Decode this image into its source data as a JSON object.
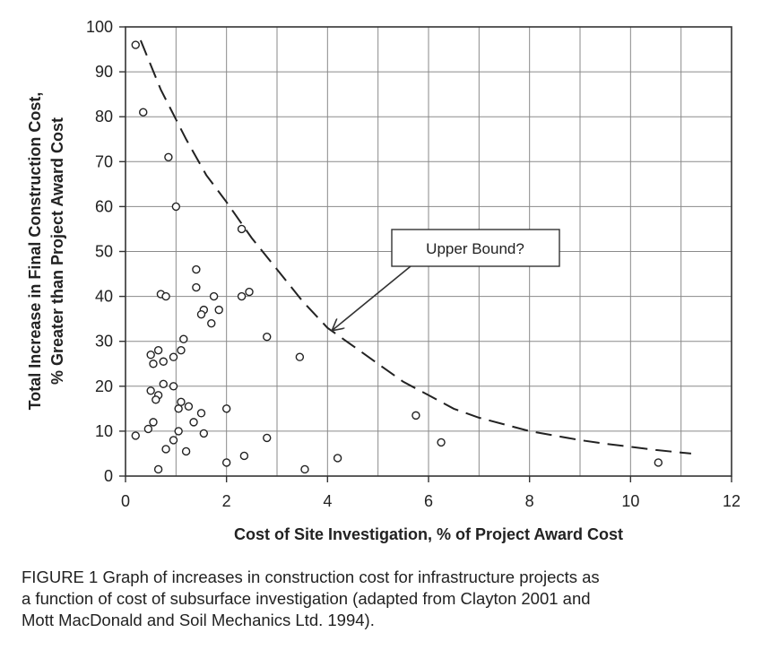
{
  "chart_data": {
    "type": "scatter",
    "xlabel": "Cost of Site Investigation, % of Project Award Cost",
    "ylabel_line1": "Total Increase in Final Construction Cost,",
    "ylabel_line2": "% Greater than Project Award Cost",
    "xlim": [
      0,
      12
    ],
    "ylim": [
      0,
      100
    ],
    "xticks": [
      0,
      2,
      4,
      6,
      8,
      10,
      12
    ],
    "yticks": [
      0,
      10,
      20,
      30,
      40,
      50,
      60,
      70,
      80,
      90,
      100
    ],
    "grid": true,
    "points": [
      {
        "x": 0.2,
        "y": 96
      },
      {
        "x": 0.35,
        "y": 81
      },
      {
        "x": 0.85,
        "y": 71
      },
      {
        "x": 1.0,
        "y": 60
      },
      {
        "x": 2.3,
        "y": 55
      },
      {
        "x": 1.4,
        "y": 46
      },
      {
        "x": 1.4,
        "y": 42
      },
      {
        "x": 0.7,
        "y": 40.5
      },
      {
        "x": 0.8,
        "y": 40
      },
      {
        "x": 1.75,
        "y": 40
      },
      {
        "x": 2.3,
        "y": 40
      },
      {
        "x": 2.45,
        "y": 41
      },
      {
        "x": 1.55,
        "y": 37
      },
      {
        "x": 1.85,
        "y": 37
      },
      {
        "x": 1.5,
        "y": 36
      },
      {
        "x": 1.7,
        "y": 34
      },
      {
        "x": 1.15,
        "y": 30.5
      },
      {
        "x": 1.1,
        "y": 28
      },
      {
        "x": 0.65,
        "y": 28
      },
      {
        "x": 0.5,
        "y": 27
      },
      {
        "x": 0.95,
        "y": 26.5
      },
      {
        "x": 0.75,
        "y": 25.5
      },
      {
        "x": 0.55,
        "y": 25
      },
      {
        "x": 0.75,
        "y": 20.5
      },
      {
        "x": 0.95,
        "y": 20
      },
      {
        "x": 0.5,
        "y": 19
      },
      {
        "x": 0.65,
        "y": 18
      },
      {
        "x": 0.6,
        "y": 17
      },
      {
        "x": 1.1,
        "y": 16.5
      },
      {
        "x": 1.25,
        "y": 15.5
      },
      {
        "x": 1.05,
        "y": 15
      },
      {
        "x": 1.5,
        "y": 14
      },
      {
        "x": 1.35,
        "y": 12
      },
      {
        "x": 0.55,
        "y": 12
      },
      {
        "x": 0.45,
        "y": 10.5
      },
      {
        "x": 1.05,
        "y": 10
      },
      {
        "x": 2.0,
        "y": 15
      },
      {
        "x": 1.55,
        "y": 9.5
      },
      {
        "x": 0.2,
        "y": 9
      },
      {
        "x": 0.95,
        "y": 8
      },
      {
        "x": 0.8,
        "y": 6
      },
      {
        "x": 1.2,
        "y": 5.5
      },
      {
        "x": 0.65,
        "y": 1.5
      },
      {
        "x": 2.0,
        "y": 3
      },
      {
        "x": 2.35,
        "y": 4.5
      },
      {
        "x": 2.8,
        "y": 31
      },
      {
        "x": 2.8,
        "y": 8.5
      },
      {
        "x": 3.45,
        "y": 26.5
      },
      {
        "x": 3.55,
        "y": 1.5
      },
      {
        "x": 4.2,
        "y": 4
      },
      {
        "x": 5.75,
        "y": 13.5
      },
      {
        "x": 6.25,
        "y": 7.5
      },
      {
        "x": 10.55,
        "y": 3
      }
    ],
    "upper_bound_curve": [
      {
        "x": 0.3,
        "y": 97
      },
      {
        "x": 0.7,
        "y": 86
      },
      {
        "x": 1.2,
        "y": 75
      },
      {
        "x": 1.6,
        "y": 67
      },
      {
        "x": 2.0,
        "y": 61
      },
      {
        "x": 2.5,
        "y": 53
      },
      {
        "x": 3.0,
        "y": 46
      },
      {
        "x": 3.5,
        "y": 39
      },
      {
        "x": 4.0,
        "y": 33
      },
      {
        "x": 4.5,
        "y": 29
      },
      {
        "x": 5.0,
        "y": 25
      },
      {
        "x": 5.5,
        "y": 21
      },
      {
        "x": 6.0,
        "y": 18
      },
      {
        "x": 6.5,
        "y": 15
      },
      {
        "x": 7.0,
        "y": 13
      },
      {
        "x": 7.5,
        "y": 11.5
      },
      {
        "x": 8.0,
        "y": 10
      },
      {
        "x": 8.5,
        "y": 9
      },
      {
        "x": 9.0,
        "y": 8
      },
      {
        "x": 9.5,
        "y": 7.2
      },
      {
        "x": 10.0,
        "y": 6.5
      },
      {
        "x": 10.5,
        "y": 5.8
      },
      {
        "x": 11.2,
        "y": 5
      }
    ],
    "annotation": {
      "text": "Upper Bound?",
      "arrow_target": {
        "x": 4.1,
        "y": 32.5
      }
    }
  },
  "caption": {
    "line1": "FIGURE 1  Graph of increases in construction cost for infrastructure projects as",
    "line2": "a function of cost of subsurface investigation (adapted from Clayton 2001 and",
    "line3": "Mott MacDonald and Soil Mechanics Ltd. 1994)."
  }
}
